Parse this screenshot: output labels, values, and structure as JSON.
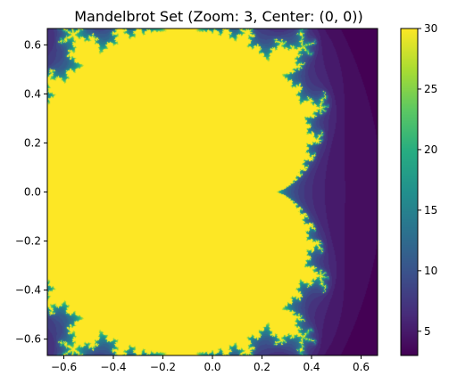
{
  "chart_data": {
    "type": "heatmap",
    "title": "Mandelbrot Set (Zoom: 3, Center: (0, 0))",
    "xlabel": "",
    "ylabel": "",
    "xlim": [
      -0.6667,
      0.6667
    ],
    "ylim": [
      -0.6667,
      0.6667
    ],
    "xticks": [
      -0.6,
      -0.4,
      -0.2,
      0.0,
      0.2,
      0.4,
      0.6
    ],
    "yticks": [
      -0.6,
      -0.4,
      -0.2,
      0.0,
      0.2,
      0.4,
      0.6
    ],
    "x_tick_labels": [
      "−0.6",
      "−0.4",
      "−0.2",
      "0.0",
      "0.2",
      "0.4",
      "0.6"
    ],
    "y_tick_labels": [
      "−0.6",
      "−0.4",
      "−0.2",
      "0.0",
      "0.2",
      "0.4",
      "0.6"
    ],
    "colorbar": {
      "min": 3,
      "max": 30,
      "ticks": [
        5,
        10,
        15,
        20,
        25,
        30
      ],
      "tick_labels": [
        "5",
        "10",
        "15",
        "20",
        "25",
        "30"
      ],
      "colormap": "viridis"
    },
    "grid": false,
    "center": [
      0,
      0
    ],
    "zoom": 3,
    "max_iterations": 30
  }
}
